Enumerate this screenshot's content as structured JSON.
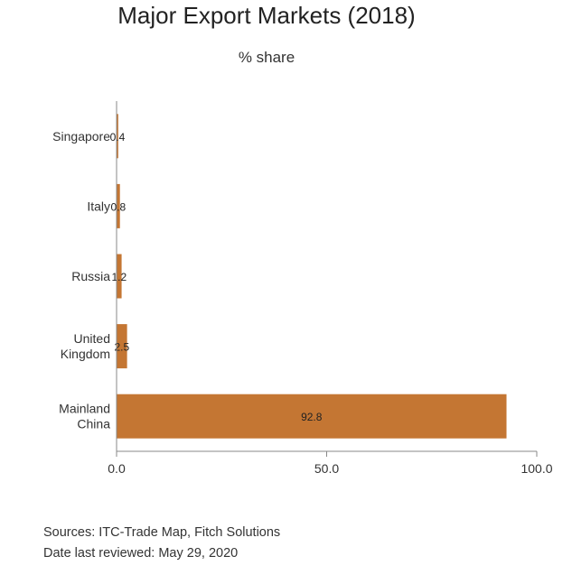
{
  "chart_data": {
    "type": "bar",
    "orientation": "horizontal",
    "title": "Major Export Markets (2018)",
    "subtitle": "% share",
    "categories": [
      [
        "Singapore"
      ],
      [
        "Italy"
      ],
      [
        "Russia"
      ],
      [
        "United",
        "Kingdom"
      ],
      [
        "Mainland",
        "China"
      ]
    ],
    "values": [
      0.4,
      0.8,
      1.2,
      2.5,
      92.8
    ],
    "value_labels": [
      "0.4",
      "0.8",
      "1.2",
      "2.5",
      "92.8"
    ],
    "xlim": [
      0,
      100
    ],
    "xticks": [
      0,
      50,
      100
    ],
    "xtick_labels": [
      "0.0",
      "50.0",
      "100.0"
    ],
    "grid": false,
    "legend": "none",
    "bar_color": "#c47633"
  },
  "footer": {
    "sources": "Sources: ITC-Trade Map, Fitch Solutions",
    "reviewed": "Date last reviewed: May 29, 2020"
  }
}
